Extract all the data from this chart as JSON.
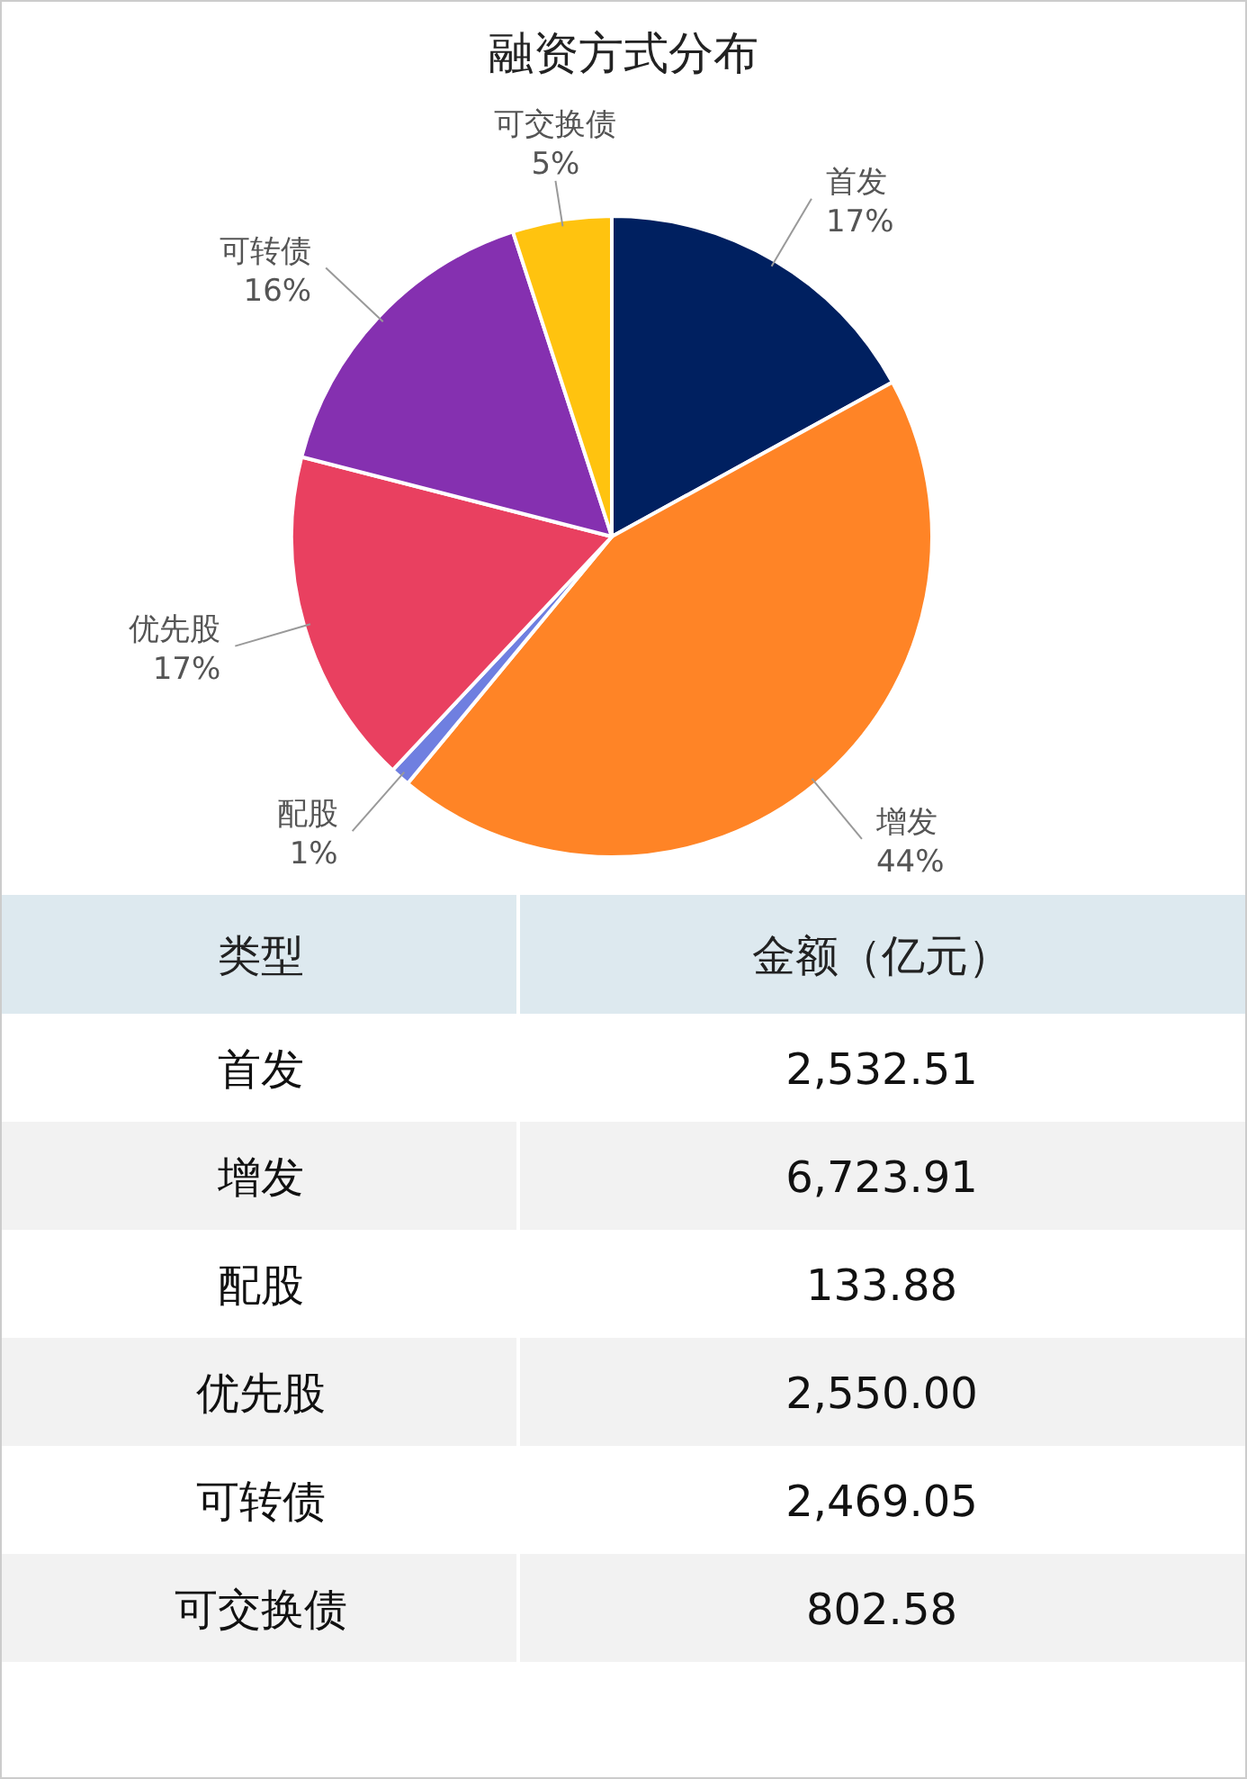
{
  "chart_data": [
    {
      "type": "pie",
      "title": "融资方式分布",
      "categories": [
        "首发",
        "增发",
        "配股",
        "优先股",
        "可转债",
        "可交换债"
      ],
      "values": [
        17,
        44,
        1,
        17,
        16,
        5
      ],
      "value_labels": [
        "17%",
        "44%",
        "1%",
        "17%",
        "16%",
        "5%"
      ],
      "colors": [
        "#002060",
        "#ff8426",
        "#6f7fe0",
        "#e94060",
        "#8530b0",
        "#ffc30f"
      ]
    },
    {
      "type": "other",
      "annotations": [
        "类型",
        "金额（亿元）",
        "首发",
        "2,532.51",
        "增发",
        "6,723.91",
        "配股",
        "133.88",
        "优先股",
        "2,550.00",
        "可转债",
        "2,469.05",
        "可交换债",
        "802.58"
      ]
    }
  ]
}
